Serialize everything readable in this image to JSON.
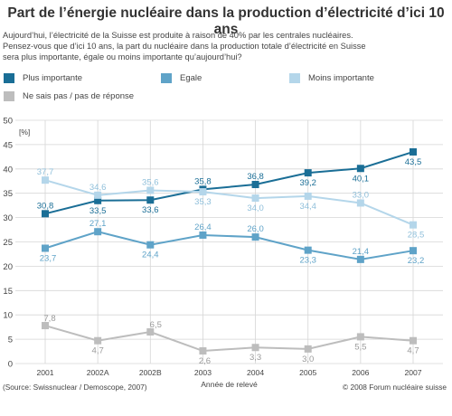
{
  "title": "Part de l’énergie nucléaire dans la production d’électricité d’ici 10 ans",
  "intro": [
    "Aujourd’hui, l’électricité de la Suisse est produite à raison de 40% par les centrales nucléaires.",
    "Pensez-vous que d’ici 10 ans, la part du nucléaire dans la production totale d’électricité en Suisse",
    "sera plus importante, égale ou moins importante qu’aujourd’hui?"
  ],
  "source": "(Source: Swissnuclear / Demoscope, 2007)",
  "copyright": "© 2008 Forum nucléaire suisse",
  "colors": {
    "plus": "#1a6e96",
    "egale": "#5fa3c8",
    "moins": "#b4d6ea",
    "nsp": "#bdbdbd"
  },
  "chart_data": {
    "type": "line",
    "title": "Part de l’énergie nucléaire dans la production d’électricité d’ici 10 ans",
    "xlabel": "Année de relevé",
    "ylabel": "[%]",
    "ylim": [
      0,
      50
    ],
    "yticks": [
      0,
      5,
      10,
      15,
      20,
      25,
      30,
      35,
      40,
      45,
      50
    ],
    "grid": true,
    "categories": [
      "2001",
      "2002A",
      "2002B",
      "2003",
      "2004",
      "2005",
      "2006",
      "2007"
    ],
    "series": [
      {
        "key": "plus",
        "name": "Plus importante",
        "values": [
          30.8,
          33.5,
          33.6,
          35.8,
          36.8,
          39.2,
          40.1,
          43.5
        ],
        "labels": [
          "30,8",
          "33,5",
          "33,6",
          "35,8",
          "36,8",
          "39,2",
          "40,1",
          "43,5"
        ]
      },
      {
        "key": "egale",
        "name": "Egale",
        "values": [
          23.7,
          27.1,
          24.4,
          26.4,
          26.0,
          23.3,
          21.4,
          23.2
        ],
        "labels": [
          "23,7",
          "27,1",
          "24,4",
          "26,4",
          "26,0",
          "23,3",
          "21,4",
          "23,2"
        ]
      },
      {
        "key": "moins",
        "name": "Moins importante",
        "values": [
          37.7,
          34.6,
          35.6,
          35.3,
          34.0,
          34.4,
          33.0,
          28.5
        ],
        "labels": [
          "37,7",
          "34,6",
          "35,6",
          "35,3",
          "34,0",
          "34,4",
          "33,0",
          "28,5"
        ]
      },
      {
        "key": "nsp",
        "name": "Ne sais pas / pas de réponse",
        "values": [
          7.8,
          4.7,
          6.5,
          2.6,
          3.3,
          3.0,
          5.5,
          4.7
        ],
        "labels": [
          "7,8",
          "4,7",
          "6,5",
          "2,6",
          "3,3",
          "3,0",
          "5,5",
          "4,7"
        ]
      }
    ]
  }
}
